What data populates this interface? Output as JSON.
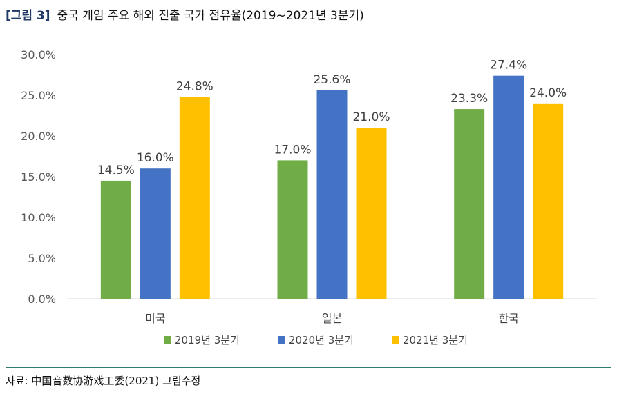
{
  "figure": {
    "tag": "[그림 3]",
    "title": "중국 게임 주요 해외 진출 국가 점유율(2019~2021년 3분기)",
    "source": "자료: 中国音数协游戏工委(2021) 그림수정"
  },
  "chart_data": {
    "type": "bar",
    "title": "",
    "xlabel": "",
    "ylabel": "",
    "categories": [
      "미국",
      "일본",
      "한국"
    ],
    "series": [
      {
        "name": "2019년 3분기",
        "values": [
          14.5,
          17.0,
          23.3
        ],
        "labels": [
          "14.5%",
          "17.0%",
          "23.3%"
        ],
        "color": "#70ad47"
      },
      {
        "name": "2020년 3분기",
        "values": [
          16.0,
          25.6,
          27.4
        ],
        "labels": [
          "16.0%",
          "25.6%",
          "27.4%"
        ],
        "color": "#4472c4"
      },
      {
        "name": "2021년 3분기",
        "values": [
          24.8,
          21.0,
          24.0
        ],
        "labels": [
          "24.8%",
          "21.0%",
          "24.0%"
        ],
        "color": "#ffc000"
      }
    ],
    "ylim": [
      0,
      30
    ],
    "yticks": [
      0,
      5,
      10,
      15,
      20,
      25,
      30
    ],
    "ytick_labels": [
      "0.0%",
      "5.0%",
      "10.0%",
      "15.0%",
      "20.0%",
      "25.0%",
      "30.0%"
    ],
    "grid": false,
    "legend": "bottom"
  }
}
